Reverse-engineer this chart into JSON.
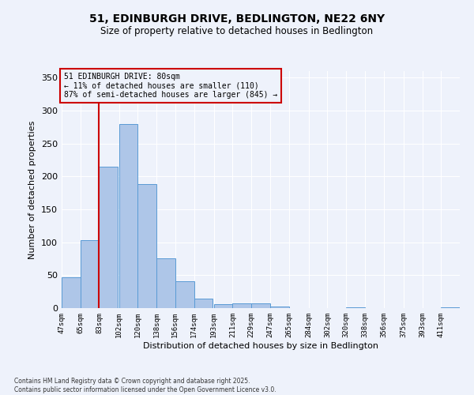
{
  "title_line1": "51, EDINBURGH DRIVE, BEDLINGTON, NE22 6NY",
  "title_line2": "Size of property relative to detached houses in Bedlington",
  "xlabel": "Distribution of detached houses by size in Bedlington",
  "ylabel": "Number of detached properties",
  "annotation_title": "51 EDINBURGH DRIVE: 80sqm",
  "annotation_line2": "← 11% of detached houses are smaller (110)",
  "annotation_line3": "87% of semi-detached houses are larger (845) →",
  "property_line_x": 83,
  "categories": [
    "47sqm",
    "65sqm",
    "83sqm",
    "102sqm",
    "120sqm",
    "138sqm",
    "156sqm",
    "174sqm",
    "193sqm",
    "211sqm",
    "229sqm",
    "247sqm",
    "265sqm",
    "284sqm",
    "302sqm",
    "320sqm",
    "338sqm",
    "356sqm",
    "375sqm",
    "393sqm",
    "411sqm"
  ],
  "bar_edges": [
    47,
    65,
    83,
    102,
    120,
    138,
    156,
    174,
    193,
    211,
    229,
    247,
    265,
    284,
    302,
    320,
    338,
    356,
    375,
    393,
    411
  ],
  "bar_heights": [
    47,
    103,
    215,
    280,
    188,
    76,
    41,
    15,
    6,
    7,
    7,
    3,
    0,
    0,
    0,
    1,
    0,
    0,
    0,
    0,
    1
  ],
  "bar_color": "#aec6e8",
  "bar_edge_color": "#5a9bd5",
  "property_line_color": "#cc0000",
  "annotation_box_color": "#cc0000",
  "background_color": "#eef2fb",
  "grid_color": "#ffffff",
  "ylim": [
    0,
    360
  ],
  "yticks": [
    0,
    50,
    100,
    150,
    200,
    250,
    300,
    350
  ],
  "footer_line1": "Contains HM Land Registry data © Crown copyright and database right 2025.",
  "footer_line2": "Contains public sector information licensed under the Open Government Licence v3.0."
}
